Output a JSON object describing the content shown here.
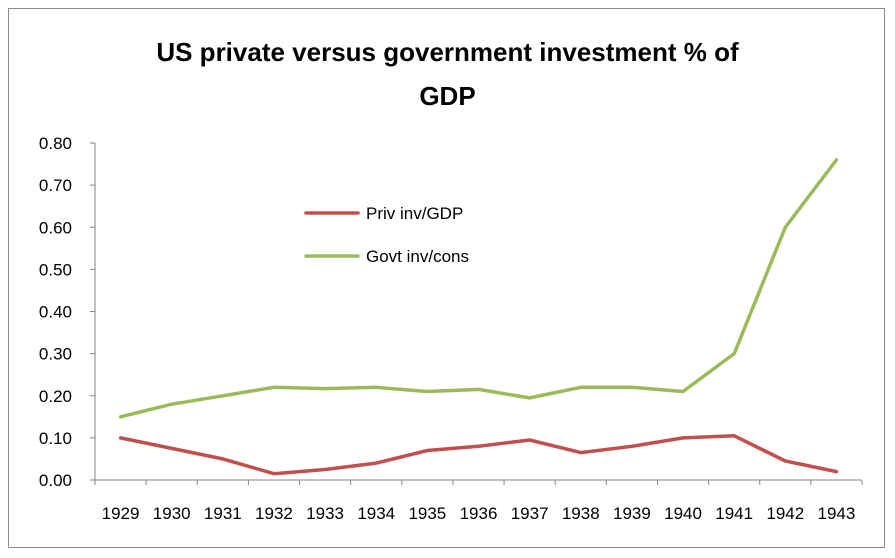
{
  "chart_data": {
    "type": "line",
    "title": "US private versus government investment % of GDP",
    "title_lines": [
      "US private versus government investment % of",
      "GDP"
    ],
    "categories": [
      "1929",
      "1930",
      "1931",
      "1932",
      "1933",
      "1934",
      "1935",
      "1936",
      "1937",
      "1938",
      "1939",
      "1940",
      "1941",
      "1942",
      "1943"
    ],
    "y_ticks": [
      "0.00",
      "0.10",
      "0.20",
      "0.30",
      "0.40",
      "0.50",
      "0.60",
      "0.70",
      "0.80"
    ],
    "ylim": [
      0,
      0.8
    ],
    "grid": false,
    "legend_position": "upper-center",
    "series": [
      {
        "name": "Priv inv/GDP",
        "color": "#c0504d",
        "values": [
          0.1,
          0.075,
          0.05,
          0.015,
          0.025,
          0.04,
          0.07,
          0.08,
          0.095,
          0.065,
          0.08,
          0.1,
          0.105,
          0.045,
          0.02
        ]
      },
      {
        "name": "Govt inv/cons",
        "color": "#9bbb59",
        "values": [
          0.15,
          0.18,
          0.2,
          0.22,
          0.217,
          0.22,
          0.21,
          0.215,
          0.195,
          0.22,
          0.22,
          0.21,
          0.3,
          0.6,
          0.76
        ]
      }
    ]
  }
}
